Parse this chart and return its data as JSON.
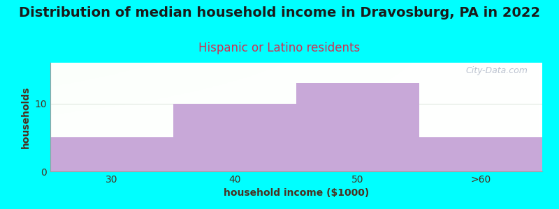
{
  "title": "Distribution of median household income in Dravosburg, PA in 2022",
  "subtitle": "Hispanic or Latino residents",
  "xlabel": "household income ($1000)",
  "ylabel": "households",
  "background_color": "#00FFFF",
  "bar_color": "#c8a8d8",
  "categories": [
    "30",
    "40",
    "50",
    ">60"
  ],
  "values": [
    5,
    10,
    13,
    5
  ],
  "ylim": [
    0,
    16
  ],
  "yticks": [
    0,
    10
  ],
  "title_fontsize": 14,
  "subtitle_fontsize": 12,
  "subtitle_color": "#cc3355",
  "title_color": "#1a1a1a",
  "axis_label_color": "#4a3020",
  "tick_color": "#4a3020",
  "watermark_text": "City-Data.com",
  "watermark_color": "#b0b8c8",
  "grid_color": "#e0e8e0",
  "plot_left_color": "#e8f8e8",
  "plot_right_color": "#f8f8f8"
}
